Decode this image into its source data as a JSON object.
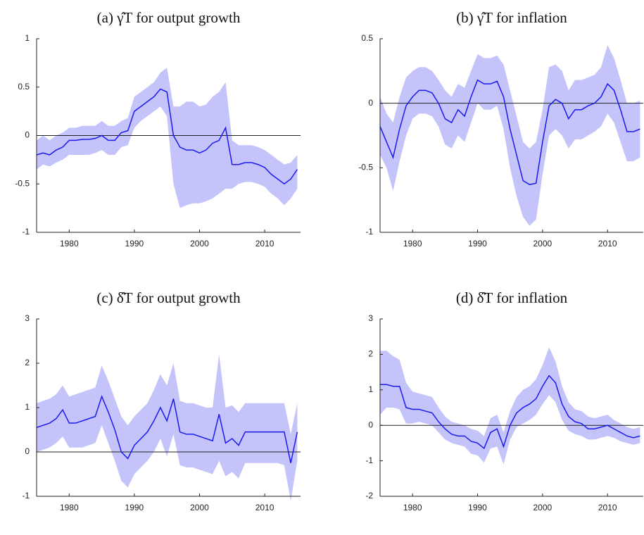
{
  "chart_data": [
    {
      "type": "line",
      "title": "(a) γ̂T for output growth",
      "color": "#1a1aee",
      "band_color": "#c4c4fb",
      "x": [
        1975,
        1976,
        1977,
        1978,
        1979,
        1980,
        1981,
        1982,
        1983,
        1984,
        1985,
        1986,
        1987,
        1988,
        1989,
        1990,
        1991,
        1992,
        1993,
        1994,
        1995,
        1996,
        1997,
        1998,
        1999,
        2000,
        2001,
        2002,
        2003,
        2004,
        2005,
        2006,
        2007,
        2008,
        2009,
        2010,
        2011,
        2012,
        2013,
        2014,
        2015
      ],
      "values": [
        -0.2,
        -0.18,
        -0.2,
        -0.15,
        -0.12,
        -0.05,
        -0.05,
        -0.04,
        -0.04,
        -0.03,
        0.0,
        -0.05,
        -0.05,
        0.03,
        0.05,
        0.25,
        0.3,
        0.35,
        0.4,
        0.48,
        0.45,
        0.0,
        -0.12,
        -0.15,
        -0.15,
        -0.18,
        -0.15,
        -0.08,
        -0.05,
        0.08,
        -0.3,
        -0.3,
        -0.28,
        -0.28,
        -0.3,
        -0.33,
        -0.4,
        -0.45,
        -0.5,
        -0.45,
        -0.35
      ],
      "lower": [
        -0.35,
        -0.3,
        -0.32,
        -0.28,
        -0.25,
        -0.2,
        -0.2,
        -0.2,
        -0.2,
        -0.18,
        -0.15,
        -0.2,
        -0.2,
        -0.12,
        -0.1,
        0.08,
        0.15,
        0.2,
        0.25,
        0.3,
        0.2,
        -0.5,
        -0.75,
        -0.72,
        -0.7,
        -0.7,
        -0.68,
        -0.65,
        -0.6,
        -0.55,
        -0.55,
        -0.5,
        -0.48,
        -0.48,
        -0.5,
        -0.53,
        -0.6,
        -0.65,
        -0.72,
        -0.65,
        -0.55
      ],
      "upper": [
        -0.05,
        0.0,
        -0.05,
        0.0,
        0.03,
        0.08,
        0.08,
        0.1,
        0.1,
        0.1,
        0.15,
        0.1,
        0.1,
        0.15,
        0.18,
        0.4,
        0.45,
        0.5,
        0.55,
        0.65,
        0.7,
        0.3,
        0.3,
        0.35,
        0.35,
        0.3,
        0.32,
        0.4,
        0.45,
        0.55,
        -0.05,
        -0.1,
        -0.1,
        -0.1,
        -0.12,
        -0.15,
        -0.2,
        -0.25,
        -0.3,
        -0.28,
        -0.2
      ],
      "reference_line": 0,
      "xlim": [
        1975,
        2015.5
      ],
      "xticks": [
        1980,
        1990,
        2000,
        2010
      ],
      "ylim": [
        -1,
        1
      ],
      "yticks": [
        -1,
        -0.5,
        0,
        0.5,
        1
      ]
    },
    {
      "type": "line",
      "title": "(b) γ̂T for inflation",
      "color": "#1a1aee",
      "band_color": "#c4c4fb",
      "x": [
        1975,
        1976,
        1977,
        1978,
        1979,
        1980,
        1981,
        1982,
        1983,
        1984,
        1985,
        1986,
        1987,
        1988,
        1989,
        1990,
        1991,
        1992,
        1993,
        1994,
        1995,
        1996,
        1997,
        1998,
        1999,
        2000,
        2001,
        2002,
        2003,
        2004,
        2005,
        2006,
        2007,
        2008,
        2009,
        2010,
        2011,
        2012,
        2013,
        2014,
        2015
      ],
      "values": [
        -0.18,
        -0.3,
        -0.42,
        -0.2,
        -0.02,
        0.05,
        0.1,
        0.1,
        0.08,
        0.0,
        -0.12,
        -0.15,
        -0.05,
        -0.1,
        0.05,
        0.18,
        0.15,
        0.15,
        0.17,
        0.05,
        -0.2,
        -0.4,
        -0.6,
        -0.63,
        -0.62,
        -0.3,
        -0.02,
        0.03,
        0.0,
        -0.12,
        -0.05,
        -0.05,
        -0.02,
        0.0,
        0.05,
        0.15,
        0.1,
        -0.05,
        -0.22,
        -0.22,
        -0.2
      ],
      "lower": [
        -0.4,
        -0.5,
        -0.68,
        -0.45,
        -0.25,
        -0.12,
        -0.08,
        -0.08,
        -0.1,
        -0.18,
        -0.32,
        -0.35,
        -0.25,
        -0.3,
        -0.15,
        0.0,
        -0.05,
        -0.05,
        -0.02,
        -0.2,
        -0.5,
        -0.72,
        -0.88,
        -0.95,
        -0.9,
        -0.55,
        -0.25,
        -0.2,
        -0.25,
        -0.35,
        -0.28,
        -0.28,
        -0.25,
        -0.22,
        -0.18,
        -0.08,
        -0.15,
        -0.3,
        -0.45,
        -0.45,
        -0.42
      ],
      "upper": [
        0.05,
        -0.08,
        -0.15,
        0.05,
        0.2,
        0.25,
        0.28,
        0.28,
        0.25,
        0.18,
        0.1,
        0.05,
        0.15,
        0.12,
        0.25,
        0.38,
        0.35,
        0.35,
        0.37,
        0.3,
        0.1,
        -0.1,
        -0.3,
        -0.35,
        -0.3,
        -0.05,
        0.28,
        0.3,
        0.25,
        0.1,
        0.18,
        0.18,
        0.2,
        0.22,
        0.28,
        0.45,
        0.35,
        0.18,
        0.0,
        0.0,
        0.02
      ],
      "reference_line": 0,
      "xlim": [
        1975,
        2015.5
      ],
      "xticks": [
        1980,
        1990,
        2000,
        2010
      ],
      "ylim": [
        -1,
        0.5
      ],
      "yticks": [
        -1,
        -0.5,
        0,
        0.5
      ]
    },
    {
      "type": "line",
      "title": "(c) δ̂T for output growth",
      "color": "#1a1aee",
      "band_color": "#c4c4fb",
      "x": [
        1975,
        1976,
        1977,
        1978,
        1979,
        1980,
        1981,
        1982,
        1983,
        1984,
        1985,
        1986,
        1987,
        1988,
        1989,
        1990,
        1991,
        1992,
        1993,
        1994,
        1995,
        1996,
        1997,
        1998,
        1999,
        2000,
        2001,
        2002,
        2003,
        2004,
        2005,
        2006,
        2007,
        2008,
        2009,
        2010,
        2011,
        2012,
        2013,
        2014,
        2015
      ],
      "values": [
        0.55,
        0.6,
        0.65,
        0.75,
        0.95,
        0.65,
        0.65,
        0.7,
        0.75,
        0.8,
        1.25,
        0.9,
        0.5,
        0.0,
        -0.15,
        0.15,
        0.3,
        0.45,
        0.7,
        1.0,
        0.7,
        1.2,
        0.45,
        0.4,
        0.4,
        0.35,
        0.3,
        0.25,
        0.85,
        0.2,
        0.3,
        0.15,
        0.45,
        0.45,
        0.45,
        0.45,
        0.45,
        0.45,
        0.45,
        -0.25,
        0.45
      ],
      "lower": [
        0.0,
        0.05,
        0.1,
        0.2,
        0.35,
        0.1,
        0.1,
        0.1,
        0.15,
        0.2,
        0.6,
        0.2,
        -0.2,
        -0.65,
        -0.8,
        -0.5,
        -0.35,
        -0.2,
        0.0,
        0.3,
        -0.1,
        0.4,
        -0.3,
        -0.35,
        -0.35,
        -0.4,
        -0.45,
        -0.5,
        -0.2,
        -0.55,
        -0.45,
        -0.6,
        -0.25,
        -0.25,
        -0.25,
        -0.25,
        -0.25,
        -0.25,
        -0.3,
        -1.1,
        -0.2
      ],
      "upper": [
        1.1,
        1.15,
        1.2,
        1.3,
        1.5,
        1.25,
        1.3,
        1.35,
        1.4,
        1.45,
        1.95,
        1.6,
        1.2,
        0.8,
        0.6,
        0.8,
        0.95,
        1.1,
        1.4,
        1.75,
        1.5,
        2.0,
        1.15,
        1.1,
        1.1,
        1.05,
        1.0,
        1.0,
        2.2,
        1.0,
        1.05,
        0.9,
        1.1,
        1.1,
        1.1,
        1.1,
        1.1,
        1.1,
        1.1,
        0.4,
        1.1
      ],
      "reference_line": 0,
      "xlim": [
        1975,
        2015.5
      ],
      "xticks": [
        1980,
        1990,
        2000,
        2010
      ],
      "ylim": [
        -1,
        3
      ],
      "yticks": [
        -1,
        0,
        1,
        2,
        3
      ]
    },
    {
      "type": "line",
      "title": "(d) δ̂T for inflation",
      "color": "#1a1aee",
      "band_color": "#c4c4fb",
      "x": [
        1975,
        1976,
        1977,
        1978,
        1979,
        1980,
        1981,
        1982,
        1983,
        1984,
        1985,
        1986,
        1987,
        1988,
        1989,
        1990,
        1991,
        1992,
        1993,
        1994,
        1995,
        1996,
        1997,
        1998,
        1999,
        2000,
        2001,
        2002,
        2003,
        2004,
        2005,
        2006,
        2007,
        2008,
        2009,
        2010,
        2011,
        2012,
        2013,
        2014,
        2015
      ],
      "values": [
        1.15,
        1.15,
        1.1,
        1.1,
        0.5,
        0.45,
        0.45,
        0.4,
        0.35,
        0.1,
        -0.1,
        -0.25,
        -0.3,
        -0.3,
        -0.45,
        -0.5,
        -0.65,
        -0.2,
        -0.1,
        -0.6,
        0.0,
        0.35,
        0.5,
        0.6,
        0.75,
        1.1,
        1.4,
        1.2,
        0.6,
        0.25,
        0.1,
        0.05,
        -0.1,
        -0.1,
        -0.05,
        0.0,
        -0.1,
        -0.2,
        -0.3,
        -0.35,
        -0.3
      ],
      "lower": [
        0.3,
        0.5,
        0.5,
        0.45,
        0.05,
        0.05,
        0.1,
        0.05,
        0.0,
        -0.2,
        -0.4,
        -0.5,
        -0.55,
        -0.6,
        -0.8,
        -0.85,
        -1.05,
        -0.65,
        -0.6,
        -1.1,
        -0.4,
        -0.05,
        0.05,
        0.15,
        0.3,
        0.6,
        0.85,
        0.65,
        0.15,
        -0.15,
        -0.25,
        -0.3,
        -0.4,
        -0.4,
        -0.35,
        -0.3,
        -0.35,
        -0.45,
        -0.5,
        -0.55,
        -0.5
      ],
      "upper": [
        2.1,
        2.1,
        1.95,
        1.85,
        1.2,
        0.95,
        0.9,
        0.85,
        0.8,
        0.5,
        0.25,
        0.1,
        0.05,
        0.0,
        -0.1,
        -0.15,
        -0.3,
        0.2,
        0.3,
        -0.2,
        0.4,
        0.8,
        1.0,
        1.1,
        1.3,
        1.7,
        2.2,
        1.8,
        1.1,
        0.65,
        0.45,
        0.4,
        0.25,
        0.2,
        0.25,
        0.3,
        0.15,
        0.05,
        -0.05,
        -0.1,
        -0.05
      ],
      "reference_line": 0,
      "xlim": [
        1975,
        2015.5
      ],
      "xticks": [
        1980,
        1990,
        2000,
        2010
      ],
      "ylim": [
        -2,
        3
      ],
      "yticks": [
        -2,
        -1,
        0,
        1,
        2,
        3
      ]
    }
  ]
}
